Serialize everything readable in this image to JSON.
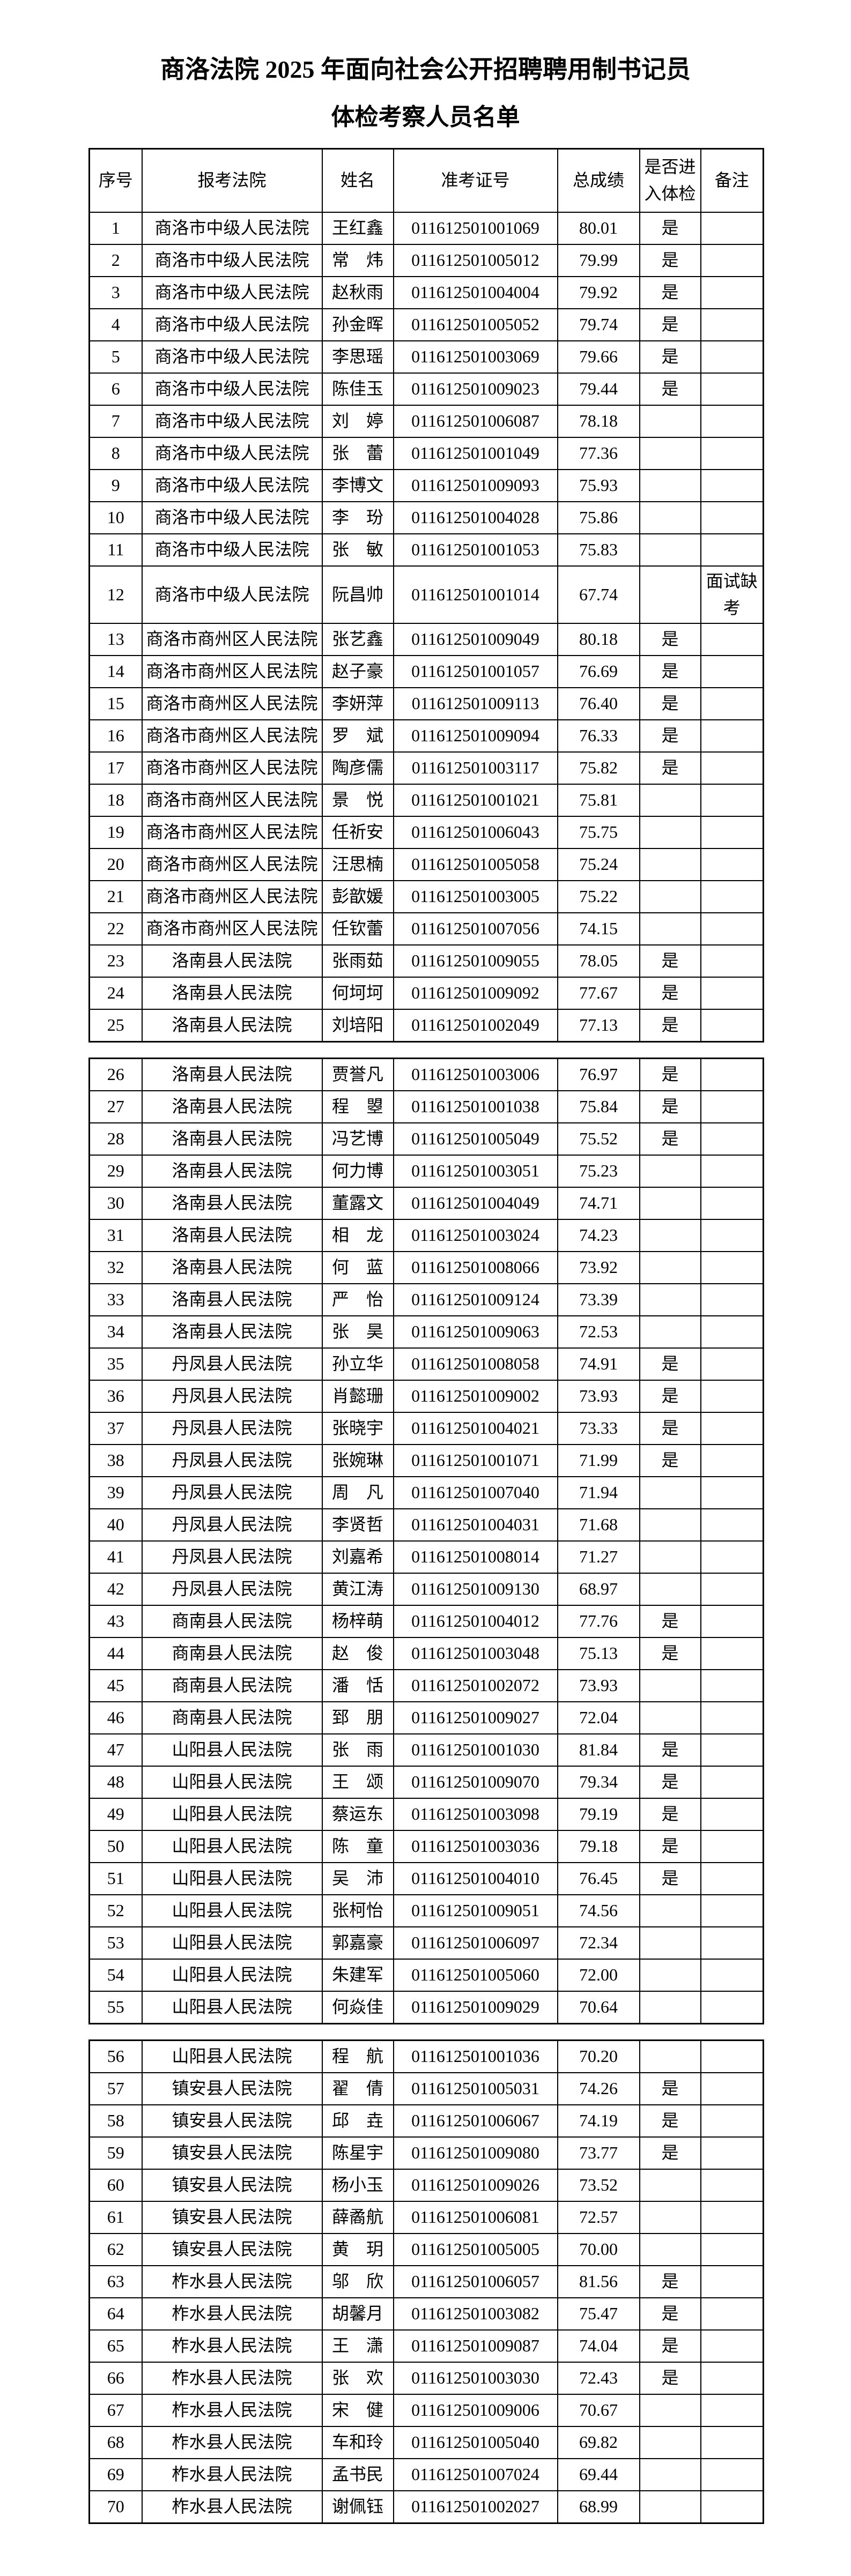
{
  "page": {
    "title_line1": "商洛法院 2025 年面向社会公开招聘聘用制书记员",
    "title_line2": "体检考察人员名单"
  },
  "table": {
    "headers": [
      "序号",
      "报考法院",
      "姓名",
      "准考证号",
      "总成绩",
      "是否进入体检",
      "备注"
    ],
    "segments": [
      [
        0,
        25
      ],
      [
        25,
        55
      ],
      [
        55,
        70
      ]
    ],
    "rows": [
      {
        "no": "1",
        "court": "商洛市中级人民法院",
        "name": "王红鑫",
        "ticket": "011612501001069",
        "score": "80.01",
        "enter": "是",
        "remark": ""
      },
      {
        "no": "2",
        "court": "商洛市中级人民法院",
        "name": "常　炜",
        "ticket": "011612501005012",
        "score": "79.99",
        "enter": "是",
        "remark": ""
      },
      {
        "no": "3",
        "court": "商洛市中级人民法院",
        "name": "赵秋雨",
        "ticket": "011612501004004",
        "score": "79.92",
        "enter": "是",
        "remark": ""
      },
      {
        "no": "4",
        "court": "商洛市中级人民法院",
        "name": "孙金晖",
        "ticket": "011612501005052",
        "score": "79.74",
        "enter": "是",
        "remark": ""
      },
      {
        "no": "5",
        "court": "商洛市中级人民法院",
        "name": "李思瑶",
        "ticket": "011612501003069",
        "score": "79.66",
        "enter": "是",
        "remark": ""
      },
      {
        "no": "6",
        "court": "商洛市中级人民法院",
        "name": "陈佳玉",
        "ticket": "011612501009023",
        "score": "79.44",
        "enter": "是",
        "remark": ""
      },
      {
        "no": "7",
        "court": "商洛市中级人民法院",
        "name": "刘　婷",
        "ticket": "011612501006087",
        "score": "78.18",
        "enter": "",
        "remark": ""
      },
      {
        "no": "8",
        "court": "商洛市中级人民法院",
        "name": "张　蕾",
        "ticket": "011612501001049",
        "score": "77.36",
        "enter": "",
        "remark": ""
      },
      {
        "no": "9",
        "court": "商洛市中级人民法院",
        "name": "李博文",
        "ticket": "011612501009093",
        "score": "75.93",
        "enter": "",
        "remark": ""
      },
      {
        "no": "10",
        "court": "商洛市中级人民法院",
        "name": "李　玢",
        "ticket": "011612501004028",
        "score": "75.86",
        "enter": "",
        "remark": ""
      },
      {
        "no": "11",
        "court": "商洛市中级人民法院",
        "name": "张　敏",
        "ticket": "011612501001053",
        "score": "75.83",
        "enter": "",
        "remark": ""
      },
      {
        "no": "12",
        "court": "商洛市中级人民法院",
        "name": "阮昌帅",
        "ticket": "011612501001014",
        "score": "67.74",
        "enter": "",
        "remark": "面试缺考"
      },
      {
        "no": "13",
        "court": "商洛市商州区人民法院",
        "name": "张艺鑫",
        "ticket": "011612501009049",
        "score": "80.18",
        "enter": "是",
        "remark": ""
      },
      {
        "no": "14",
        "court": "商洛市商州区人民法院",
        "name": "赵子豪",
        "ticket": "011612501001057",
        "score": "76.69",
        "enter": "是",
        "remark": ""
      },
      {
        "no": "15",
        "court": "商洛市商州区人民法院",
        "name": "李妍萍",
        "ticket": "011612501009113",
        "score": "76.40",
        "enter": "是",
        "remark": ""
      },
      {
        "no": "16",
        "court": "商洛市商州区人民法院",
        "name": "罗　斌",
        "ticket": "011612501009094",
        "score": "76.33",
        "enter": "是",
        "remark": ""
      },
      {
        "no": "17",
        "court": "商洛市商州区人民法院",
        "name": "陶彦儒",
        "ticket": "011612501003117",
        "score": "75.82",
        "enter": "是",
        "remark": ""
      },
      {
        "no": "18",
        "court": "商洛市商州区人民法院",
        "name": "景　悦",
        "ticket": "011612501001021",
        "score": "75.81",
        "enter": "",
        "remark": ""
      },
      {
        "no": "19",
        "court": "商洛市商州区人民法院",
        "name": "任祈安",
        "ticket": "011612501006043",
        "score": "75.75",
        "enter": "",
        "remark": ""
      },
      {
        "no": "20",
        "court": "商洛市商州区人民法院",
        "name": "汪思楠",
        "ticket": "011612501005058",
        "score": "75.24",
        "enter": "",
        "remark": ""
      },
      {
        "no": "21",
        "court": "商洛市商州区人民法院",
        "name": "彭歆媛",
        "ticket": "011612501003005",
        "score": "75.22",
        "enter": "",
        "remark": ""
      },
      {
        "no": "22",
        "court": "商洛市商州区人民法院",
        "name": "任钦蕾",
        "ticket": "011612501007056",
        "score": "74.15",
        "enter": "",
        "remark": ""
      },
      {
        "no": "23",
        "court": "洛南县人民法院",
        "name": "张雨茹",
        "ticket": "011612501009055",
        "score": "78.05",
        "enter": "是",
        "remark": ""
      },
      {
        "no": "24",
        "court": "洛南县人民法院",
        "name": "何坷坷",
        "ticket": "011612501009092",
        "score": "77.67",
        "enter": "是",
        "remark": ""
      },
      {
        "no": "25",
        "court": "洛南县人民法院",
        "name": "刘培阳",
        "ticket": "011612501002049",
        "score": "77.13",
        "enter": "是",
        "remark": ""
      },
      {
        "no": "26",
        "court": "洛南县人民法院",
        "name": "贾誉凡",
        "ticket": "011612501003006",
        "score": "76.97",
        "enter": "是",
        "remark": ""
      },
      {
        "no": "27",
        "court": "洛南县人民法院",
        "name": "程　曌",
        "ticket": "011612501001038",
        "score": "75.84",
        "enter": "是",
        "remark": ""
      },
      {
        "no": "28",
        "court": "洛南县人民法院",
        "name": "冯艺博",
        "ticket": "011612501005049",
        "score": "75.52",
        "enter": "是",
        "remark": ""
      },
      {
        "no": "29",
        "court": "洛南县人民法院",
        "name": "何力博",
        "ticket": "011612501003051",
        "score": "75.23",
        "enter": "",
        "remark": ""
      },
      {
        "no": "30",
        "court": "洛南县人民法院",
        "name": "董露文",
        "ticket": "011612501004049",
        "score": "74.71",
        "enter": "",
        "remark": ""
      },
      {
        "no": "31",
        "court": "洛南县人民法院",
        "name": "相　龙",
        "ticket": "011612501003024",
        "score": "74.23",
        "enter": "",
        "remark": ""
      },
      {
        "no": "32",
        "court": "洛南县人民法院",
        "name": "何　蓝",
        "ticket": "011612501008066",
        "score": "73.92",
        "enter": "",
        "remark": ""
      },
      {
        "no": "33",
        "court": "洛南县人民法院",
        "name": "严　怡",
        "ticket": "011612501009124",
        "score": "73.39",
        "enter": "",
        "remark": ""
      },
      {
        "no": "34",
        "court": "洛南县人民法院",
        "name": "张　昊",
        "ticket": "011612501009063",
        "score": "72.53",
        "enter": "",
        "remark": ""
      },
      {
        "no": "35",
        "court": "丹凤县人民法院",
        "name": "孙立华",
        "ticket": "011612501008058",
        "score": "74.91",
        "enter": "是",
        "remark": ""
      },
      {
        "no": "36",
        "court": "丹凤县人民法院",
        "name": "肖懿珊",
        "ticket": "011612501009002",
        "score": "73.93",
        "enter": "是",
        "remark": ""
      },
      {
        "no": "37",
        "court": "丹凤县人民法院",
        "name": "张晓宇",
        "ticket": "011612501004021",
        "score": "73.33",
        "enter": "是",
        "remark": ""
      },
      {
        "no": "38",
        "court": "丹凤县人民法院",
        "name": "张婉琳",
        "ticket": "011612501001071",
        "score": "71.99",
        "enter": "是",
        "remark": ""
      },
      {
        "no": "39",
        "court": "丹凤县人民法院",
        "name": "周　凡",
        "ticket": "011612501007040",
        "score": "71.94",
        "enter": "",
        "remark": ""
      },
      {
        "no": "40",
        "court": "丹凤县人民法院",
        "name": "李贤哲",
        "ticket": "011612501004031",
        "score": "71.68",
        "enter": "",
        "remark": ""
      },
      {
        "no": "41",
        "court": "丹凤县人民法院",
        "name": "刘嘉希",
        "ticket": "011612501008014",
        "score": "71.27",
        "enter": "",
        "remark": ""
      },
      {
        "no": "42",
        "court": "丹凤县人民法院",
        "name": "黄江涛",
        "ticket": "011612501009130",
        "score": "68.97",
        "enter": "",
        "remark": ""
      },
      {
        "no": "43",
        "court": "商南县人民法院",
        "name": "杨梓萌",
        "ticket": "011612501004012",
        "score": "77.76",
        "enter": "是",
        "remark": ""
      },
      {
        "no": "44",
        "court": "商南县人民法院",
        "name": "赵　俊",
        "ticket": "011612501003048",
        "score": "75.13",
        "enter": "是",
        "remark": ""
      },
      {
        "no": "45",
        "court": "商南县人民法院",
        "name": "潘　恬",
        "ticket": "011612501002072",
        "score": "73.93",
        "enter": "",
        "remark": ""
      },
      {
        "no": "46",
        "court": "商南县人民法院",
        "name": "郅　朋",
        "ticket": "011612501009027",
        "score": "72.04",
        "enter": "",
        "remark": ""
      },
      {
        "no": "47",
        "court": "山阳县人民法院",
        "name": "张　雨",
        "ticket": "011612501001030",
        "score": "81.84",
        "enter": "是",
        "remark": ""
      },
      {
        "no": "48",
        "court": "山阳县人民法院",
        "name": "王　颂",
        "ticket": "011612501009070",
        "score": "79.34",
        "enter": "是",
        "remark": ""
      },
      {
        "no": "49",
        "court": "山阳县人民法院",
        "name": "蔡运东",
        "ticket": "011612501003098",
        "score": "79.19",
        "enter": "是",
        "remark": ""
      },
      {
        "no": "50",
        "court": "山阳县人民法院",
        "name": "陈　童",
        "ticket": "011612501003036",
        "score": "79.18",
        "enter": "是",
        "remark": ""
      },
      {
        "no": "51",
        "court": "山阳县人民法院",
        "name": "吴　沛",
        "ticket": "011612501004010",
        "score": "76.45",
        "enter": "是",
        "remark": ""
      },
      {
        "no": "52",
        "court": "山阳县人民法院",
        "name": "张柯怡",
        "ticket": "011612501009051",
        "score": "74.56",
        "enter": "",
        "remark": ""
      },
      {
        "no": "53",
        "court": "山阳县人民法院",
        "name": "郭嘉豪",
        "ticket": "011612501006097",
        "score": "72.34",
        "enter": "",
        "remark": ""
      },
      {
        "no": "54",
        "court": "山阳县人民法院",
        "name": "朱建军",
        "ticket": "011612501005060",
        "score": "72.00",
        "enter": "",
        "remark": ""
      },
      {
        "no": "55",
        "court": "山阳县人民法院",
        "name": "何焱佳",
        "ticket": "011612501009029",
        "score": "70.64",
        "enter": "",
        "remark": ""
      },
      {
        "no": "56",
        "court": "山阳县人民法院",
        "name": "程　航",
        "ticket": "011612501001036",
        "score": "70.20",
        "enter": "",
        "remark": ""
      },
      {
        "no": "57",
        "court": "镇安县人民法院",
        "name": "翟　倩",
        "ticket": "011612501005031",
        "score": "74.26",
        "enter": "是",
        "remark": ""
      },
      {
        "no": "58",
        "court": "镇安县人民法院",
        "name": "邱　垚",
        "ticket": "011612501006067",
        "score": "74.19",
        "enter": "是",
        "remark": ""
      },
      {
        "no": "59",
        "court": "镇安县人民法院",
        "name": "陈星宇",
        "ticket": "011612501009080",
        "score": "73.77",
        "enter": "是",
        "remark": ""
      },
      {
        "no": "60",
        "court": "镇安县人民法院",
        "name": "杨小玉",
        "ticket": "011612501009026",
        "score": "73.52",
        "enter": "",
        "remark": ""
      },
      {
        "no": "61",
        "court": "镇安县人民法院",
        "name": "薛矞航",
        "ticket": "011612501006081",
        "score": "72.57",
        "enter": "",
        "remark": ""
      },
      {
        "no": "62",
        "court": "镇安县人民法院",
        "name": "黄　玥",
        "ticket": "011612501005005",
        "score": "70.00",
        "enter": "",
        "remark": ""
      },
      {
        "no": "63",
        "court": "柞水县人民法院",
        "name": "邬　欣",
        "ticket": "011612501006057",
        "score": "81.56",
        "enter": "是",
        "remark": ""
      },
      {
        "no": "64",
        "court": "柞水县人民法院",
        "name": "胡馨月",
        "ticket": "011612501003082",
        "score": "75.47",
        "enter": "是",
        "remark": ""
      },
      {
        "no": "65",
        "court": "柞水县人民法院",
        "name": "王　潇",
        "ticket": "011612501009087",
        "score": "74.04",
        "enter": "是",
        "remark": ""
      },
      {
        "no": "66",
        "court": "柞水县人民法院",
        "name": "张　欢",
        "ticket": "011612501003030",
        "score": "72.43",
        "enter": "是",
        "remark": ""
      },
      {
        "no": "67",
        "court": "柞水县人民法院",
        "name": "宋　健",
        "ticket": "011612501009006",
        "score": "70.67",
        "enter": "",
        "remark": ""
      },
      {
        "no": "68",
        "court": "柞水县人民法院",
        "name": "车和玲",
        "ticket": "011612501005040",
        "score": "69.82",
        "enter": "",
        "remark": ""
      },
      {
        "no": "69",
        "court": "柞水县人民法院",
        "name": "孟书民",
        "ticket": "011612501007024",
        "score": "69.44",
        "enter": "",
        "remark": ""
      },
      {
        "no": "70",
        "court": "柞水县人民法院",
        "name": "谢佩钰",
        "ticket": "011612501002027",
        "score": "68.99",
        "enter": "",
        "remark": ""
      }
    ]
  }
}
